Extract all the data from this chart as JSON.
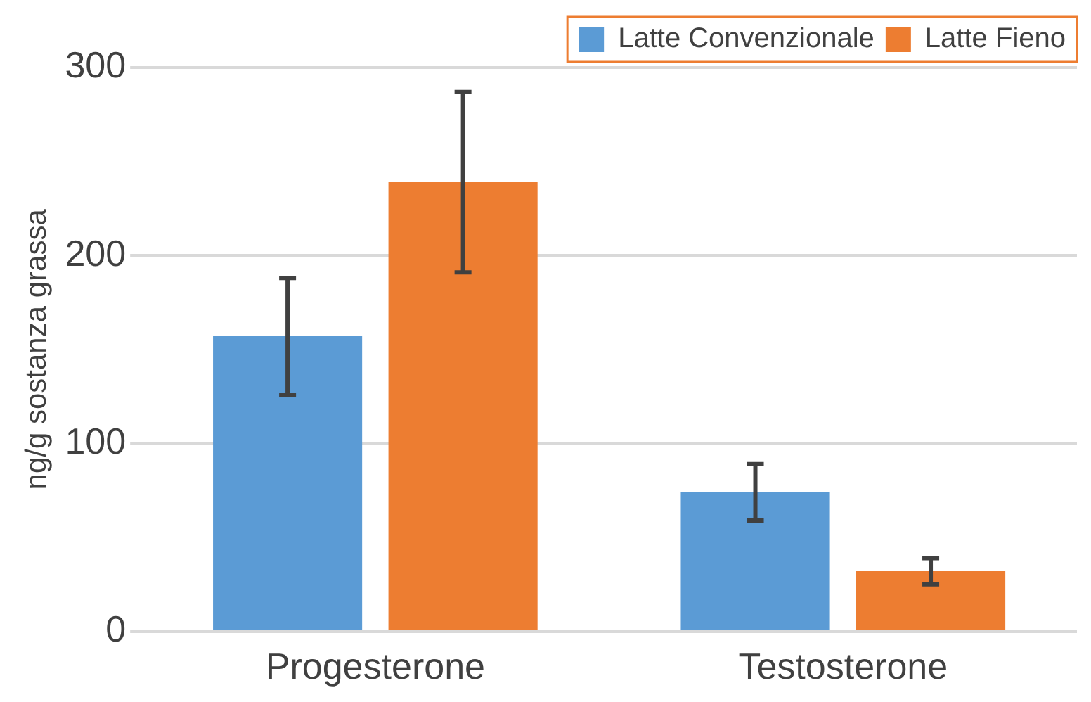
{
  "chart_data": {
    "type": "bar",
    "ylabel": "ng/g sostanza grassa",
    "categories": [
      "Progesterone",
      "Testosterone"
    ],
    "series": [
      {
        "name": "Latte Convenzionale",
        "color": "#5b9bd5",
        "values": [
          157,
          74
        ],
        "errors": [
          31,
          15
        ]
      },
      {
        "name": "Latte Fieno",
        "color": "#ed7d31",
        "values": [
          239,
          32
        ],
        "errors": [
          48,
          7
        ]
      }
    ],
    "ylim": [
      0,
      300
    ],
    "yticks": [
      0,
      100,
      200,
      300
    ],
    "grid": "y",
    "legend": "top right"
  }
}
